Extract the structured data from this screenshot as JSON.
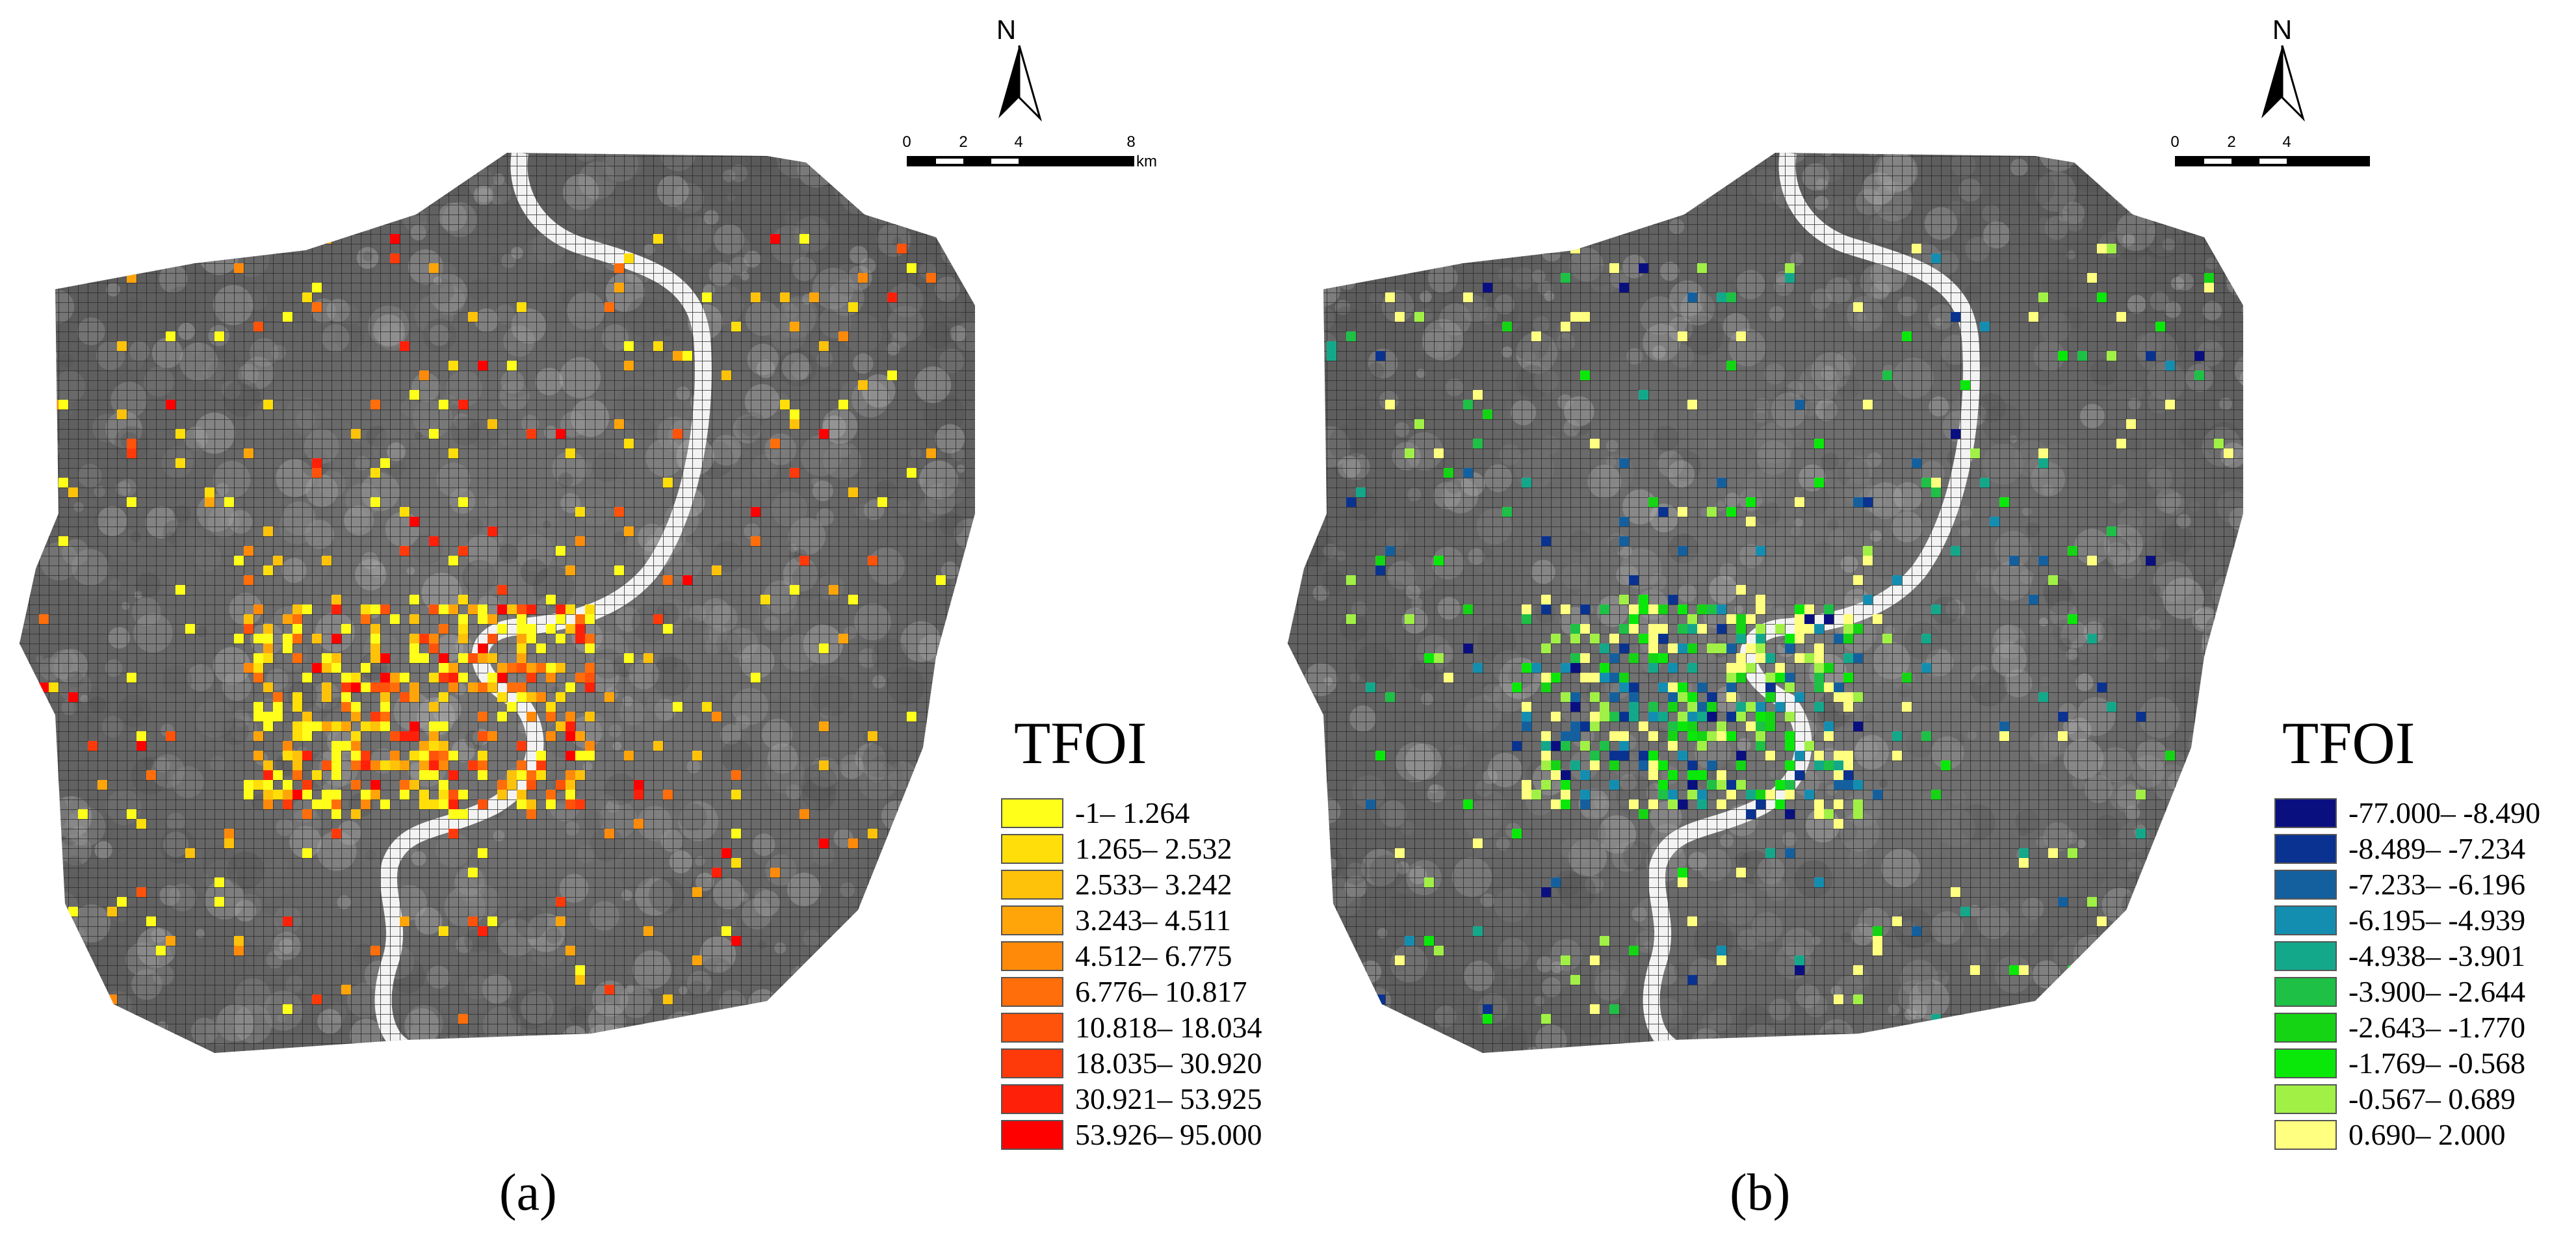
{
  "panels": [
    {
      "id": "a",
      "caption": "(a)",
      "legend_title": "TFOI",
      "north_label": "N",
      "scale": {
        "ticks": [
          "0",
          "2",
          "4",
          "8"
        ],
        "unit": "km"
      },
      "legend": [
        {
          "label": "-1– 1.264",
          "color": "#FFFF1A"
        },
        {
          "label": "1.265– 2.532",
          "color": "#FFDE0A"
        },
        {
          "label": "2.533– 3.242",
          "color": "#FFC20A"
        },
        {
          "label": "3.243– 4.511",
          "color": "#FFA50A"
        },
        {
          "label": "4.512– 6.775",
          "color": "#FF8A0A"
        },
        {
          "label": "6.776– 10.817",
          "color": "#FF6E0A"
        },
        {
          "label": "10.818– 18.034",
          "color": "#FF520A"
        },
        {
          "label": "18.035– 30.920",
          "color": "#FF3A0A"
        },
        {
          "label": "30.921– 53.925",
          "color": "#FF200A"
        },
        {
          "label": "53.926– 95.000",
          "color": "#FF0000"
        }
      ]
    },
    {
      "id": "b",
      "caption": "(b)",
      "legend_title": "TFOI",
      "north_label": "N",
      "scale": {
        "ticks": [
          "0",
          "2",
          "4"
        ],
        "unit": ""
      },
      "legend": [
        {
          "label": "-77.000– -8.490",
          "color": "#0A0F80"
        },
        {
          "label": "-8.489– -7.234",
          "color": "#0A3290"
        },
        {
          "label": "-7.233– -6.196",
          "color": "#14609E"
        },
        {
          "label": "-6.195– -4.939",
          "color": "#148EB0"
        },
        {
          "label": "-4.938– -3.901",
          "color": "#14A88A"
        },
        {
          "label": "-3.900– -2.644",
          "color": "#1EC046"
        },
        {
          "label": "-2.643– -1.770",
          "color": "#14D414"
        },
        {
          "label": "-1.769– -0.568",
          "color": "#0AE80A"
        },
        {
          "label": "-0.567– 0.689",
          "color": "#A0F046"
        },
        {
          "label": "0.690– 2.000",
          "color": "#FFFF80"
        }
      ]
    }
  ]
}
